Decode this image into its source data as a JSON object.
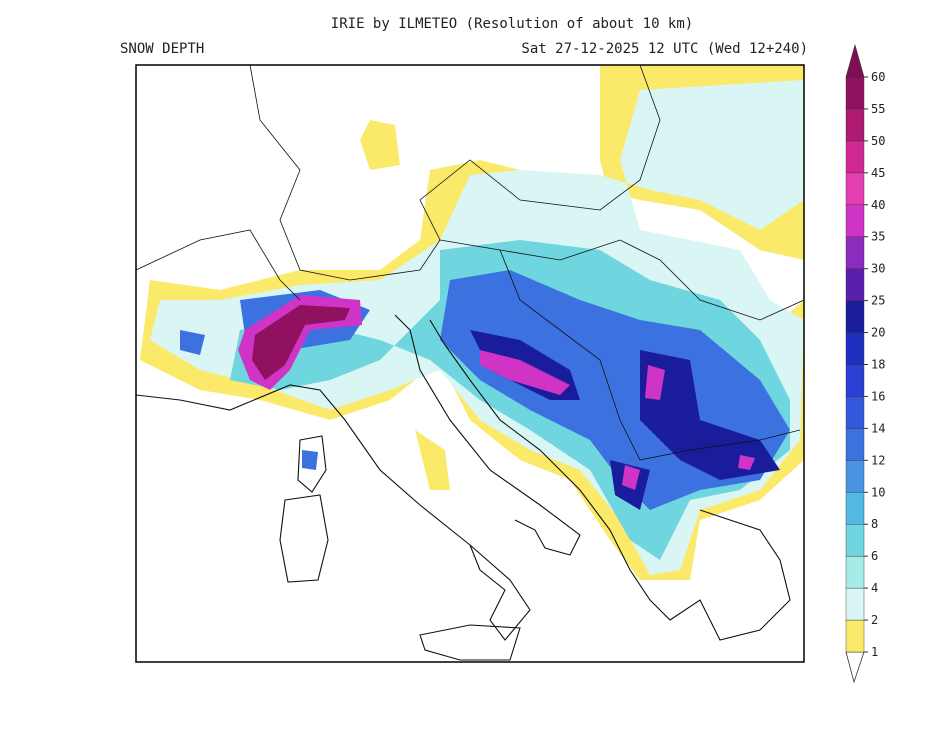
{
  "header": {
    "title": "IRIE by ILMETEO (Resolution of about 10 km)",
    "left": "SNOW DEPTH",
    "right": "Sat 27-12-2025 12 UTC (Wed 12+240)"
  },
  "legend": {
    "levels": [
      1,
      2,
      4,
      6,
      8,
      10,
      12,
      14,
      16,
      18,
      20,
      25,
      30,
      35,
      40,
      45,
      50,
      55,
      60
    ],
    "colors": [
      "#fbe96a",
      "#d9f6f4",
      "#a6ebe8",
      "#6fd6df",
      "#52b9e2",
      "#4a93e2",
      "#3c72e0",
      "#3458dc",
      "#2a40d4",
      "#1f2fbd",
      "#1a1d9b",
      "#5b1fae",
      "#8c2bbf",
      "#cf34c6",
      "#e43fb2",
      "#cf2892",
      "#b01a72",
      "#8f1160"
    ],
    "top_color": "#7e0f52"
  }
}
